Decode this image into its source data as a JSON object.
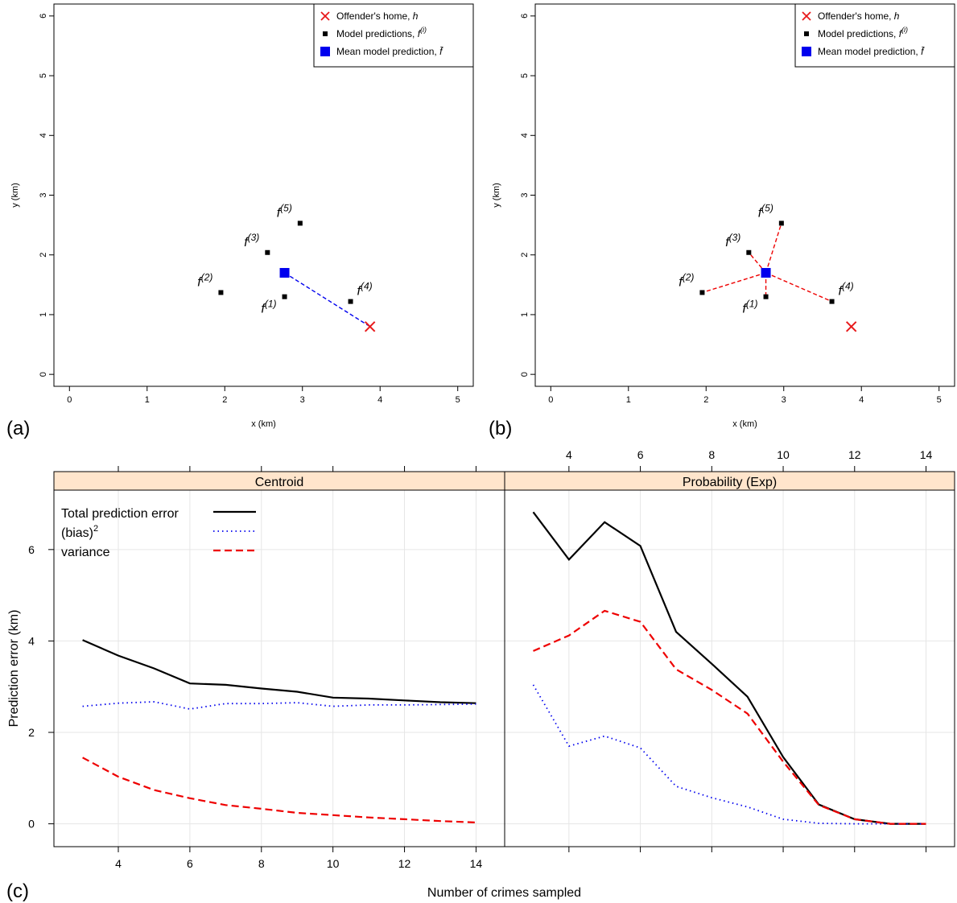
{
  "panel_labels": {
    "a": "(a)",
    "b": "(b)",
    "c": "(c)"
  },
  "colors": {
    "home": "#e8191b",
    "prediction": "#000000",
    "mean": "#0000ee",
    "total": "#000000",
    "bias": "#0000ee",
    "variance": "#ee0000",
    "strip": "#ffe5cc",
    "grid": "#e6e6e6"
  },
  "chart_data": [
    {
      "id": "a",
      "type": "scatter",
      "xlabel": "x (km)",
      "ylabel": "y (km)",
      "xlim": [
        -0.2,
        5.2
      ],
      "ylim": [
        -0.2,
        6.2
      ],
      "xticks": [
        0,
        1,
        2,
        3,
        4,
        5
      ],
      "yticks": [
        0,
        1,
        2,
        3,
        4,
        5,
        6
      ],
      "legend": {
        "position": "top-right",
        "entries": [
          {
            "label": "Offender's home, ",
            "italic": "h",
            "sup": "",
            "marker": "cross"
          },
          {
            "label": "Model predictions, ",
            "italic": "f",
            "sup": "(i)",
            "marker": "small-square"
          },
          {
            "label": "Mean model prediction, ",
            "italic": "f̄",
            "sup": "",
            "marker": "big-square"
          }
        ]
      },
      "home": {
        "x": 3.87,
        "y": 0.8
      },
      "mean": {
        "x": 2.77,
        "y": 1.7
      },
      "predictions": [
        {
          "label": "f",
          "sup": "(1)",
          "x": 2.77,
          "y": 1.3
        },
        {
          "label": "f",
          "sup": "(2)",
          "x": 1.95,
          "y": 1.37
        },
        {
          "label": "f",
          "sup": "(3)",
          "x": 2.55,
          "y": 2.04
        },
        {
          "label": "f",
          "sup": "(4)",
          "x": 3.62,
          "y": 1.22
        },
        {
          "label": "f",
          "sup": "(5)",
          "x": 2.97,
          "y": 2.53
        }
      ],
      "connectors": "mean-to-home"
    },
    {
      "id": "b",
      "type": "scatter",
      "xlabel": "x (km)",
      "ylabel": "y (km)",
      "xlim": [
        -0.2,
        5.2
      ],
      "ylim": [
        -0.2,
        6.2
      ],
      "xticks": [
        0,
        1,
        2,
        3,
        4,
        5
      ],
      "yticks": [
        0,
        1,
        2,
        3,
        4,
        5,
        6
      ],
      "legend": {
        "position": "top-right",
        "entries": [
          {
            "label": "Offender's home, ",
            "italic": "h",
            "sup": "",
            "marker": "cross"
          },
          {
            "label": "Model predictions, ",
            "italic": "f",
            "sup": "(i)",
            "marker": "small-square"
          },
          {
            "label": "Mean model prediction, ",
            "italic": "f̄",
            "sup": "",
            "marker": "big-square"
          }
        ]
      },
      "home": {
        "x": 3.87,
        "y": 0.8
      },
      "mean": {
        "x": 2.77,
        "y": 1.7
      },
      "predictions": [
        {
          "label": "f",
          "sup": "(1)",
          "x": 2.77,
          "y": 1.3
        },
        {
          "label": "f",
          "sup": "(2)",
          "x": 1.95,
          "y": 1.37
        },
        {
          "label": "f",
          "sup": "(3)",
          "x": 2.55,
          "y": 2.04
        },
        {
          "label": "f",
          "sup": "(4)",
          "x": 3.62,
          "y": 1.22
        },
        {
          "label": "f",
          "sup": "(5)",
          "x": 2.97,
          "y": 2.53
        }
      ],
      "connectors": "mean-to-predictions"
    },
    {
      "id": "c",
      "type": "line",
      "xlabel": "Number of crimes sampled",
      "ylabel": "Prediction error (km)",
      "xlim": [
        2.2,
        14.8
      ],
      "ylim": [
        -0.5,
        7.3
      ],
      "xticks": [
        4,
        6,
        8,
        10,
        12,
        14
      ],
      "yticks": [
        0,
        2,
        4,
        6
      ],
      "grid": true,
      "legend": {
        "position": "top-left",
        "entries": [
          {
            "label": "Total prediction error",
            "sup": "",
            "series": "total"
          },
          {
            "label": "(bias)",
            "sup": "2",
            "series": "bias"
          },
          {
            "label": "variance",
            "sup": "",
            "series": "variance"
          }
        ]
      },
      "panels": [
        {
          "strip": "Centroid",
          "x": [
            3,
            4,
            5,
            6,
            7,
            8,
            9,
            10,
            11,
            12,
            13,
            14
          ],
          "series": [
            {
              "key": "total",
              "values": [
                4.02,
                3.68,
                3.4,
                3.07,
                3.04,
                2.96,
                2.89,
                2.76,
                2.74,
                2.7,
                2.66,
                2.64
              ]
            },
            {
              "key": "bias",
              "values": [
                2.57,
                2.64,
                2.67,
                2.51,
                2.63,
                2.63,
                2.65,
                2.57,
                2.6,
                2.6,
                2.61,
                2.62
              ]
            },
            {
              "key": "variance",
              "values": [
                1.45,
                1.03,
                0.74,
                0.56,
                0.41,
                0.33,
                0.24,
                0.19,
                0.14,
                0.1,
                0.06,
                0.03
              ]
            }
          ]
        },
        {
          "strip": "Probability (Exp)",
          "x": [
            3,
            4,
            5,
            6,
            7,
            8,
            9,
            10,
            11,
            12,
            13,
            14
          ],
          "series": [
            {
              "key": "total",
              "values": [
                6.82,
                5.78,
                6.6,
                6.08,
                4.2,
                3.5,
                2.78,
                1.46,
                0.42,
                0.1,
                0.0,
                0.0
              ]
            },
            {
              "key": "bias",
              "values": [
                3.04,
                1.7,
                1.92,
                1.66,
                0.82,
                0.57,
                0.37,
                0.1,
                0.01,
                0.0,
                0.0,
                0.0
              ]
            },
            {
              "key": "variance",
              "values": [
                3.78,
                4.12,
                4.66,
                4.42,
                3.38,
                2.93,
                2.41,
                1.36,
                0.41,
                0.1,
                0.0,
                0.0
              ]
            }
          ]
        }
      ]
    }
  ]
}
